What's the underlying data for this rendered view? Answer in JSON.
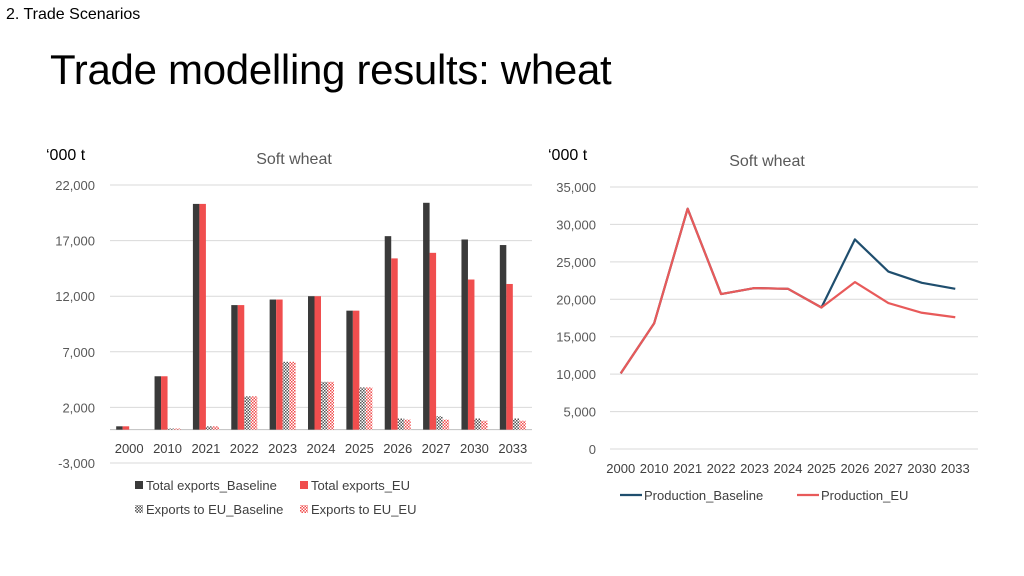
{
  "header": {
    "section": "2. Trade Scenarios",
    "title": "Trade modelling results: wheat"
  },
  "chart_data": [
    {
      "type": "bar",
      "unit_label": "‘000 t",
      "title": "Soft wheat",
      "categories": [
        "2000",
        "2010",
        "2021",
        "2022",
        "2023",
        "2024",
        "2025",
        "2026",
        "2027",
        "2030",
        "2033"
      ],
      "ylim": [
        -3000,
        22000
      ],
      "yticks": [
        -3000,
        2000,
        7000,
        12000,
        17000,
        22000
      ],
      "ytick_labels": [
        "-3,000",
        "2,000",
        "7,000",
        "12,000",
        "17,000",
        "22,000"
      ],
      "grid": true,
      "legend_position": "bottom",
      "series": [
        {
          "name": "Total exports_Baseline",
          "color": "#3a3a3a",
          "pattern": "solid",
          "values": [
            300,
            4800,
            20300,
            11200,
            11700,
            12000,
            10700,
            17400,
            20400,
            17100,
            16600
          ]
        },
        {
          "name": "Total exports_EU",
          "color": "#f04e4e",
          "pattern": "solid",
          "values": [
            300,
            4800,
            20300,
            11200,
            11700,
            12000,
            10700,
            15400,
            15900,
            13500,
            13100
          ]
        },
        {
          "name": "Exports to EU_Baseline",
          "color": "#555555",
          "pattern": "checker",
          "values": [
            0,
            100,
            300,
            3000,
            6100,
            4300,
            3800,
            1000,
            1200,
            1000,
            1000
          ]
        },
        {
          "name": "Exports to EU_EU",
          "color": "#f04e4e",
          "pattern": "checker",
          "values": [
            0,
            100,
            300,
            3000,
            6100,
            4300,
            3800,
            900,
            900,
            800,
            800
          ]
        }
      ]
    },
    {
      "type": "line",
      "unit_label": "‘000 t",
      "title": "Soft wheat",
      "categories": [
        "2000",
        "2010",
        "2021",
        "2022",
        "2023",
        "2024",
        "2025",
        "2026",
        "2027",
        "2030",
        "2033"
      ],
      "ylim": [
        0,
        35000
      ],
      "yticks": [
        0,
        5000,
        10000,
        15000,
        20000,
        25000,
        30000,
        35000
      ],
      "ytick_labels": [
        "0",
        "5,000",
        "10,000",
        "15,000",
        "20,000",
        "25,000",
        "30,000",
        "35,000"
      ],
      "grid": true,
      "legend_position": "bottom",
      "series": [
        {
          "name": "Production_Baseline",
          "color": "#1f4e6e",
          "values": [
            10100,
            16800,
            32100,
            20700,
            21500,
            21400,
            18900,
            28000,
            23700,
            22200,
            21400
          ]
        },
        {
          "name": "Production_EU",
          "color": "#e85a5a",
          "values": [
            10100,
            16800,
            32100,
            20700,
            21500,
            21400,
            18900,
            22300,
            19500,
            18200,
            17600
          ]
        }
      ]
    }
  ]
}
